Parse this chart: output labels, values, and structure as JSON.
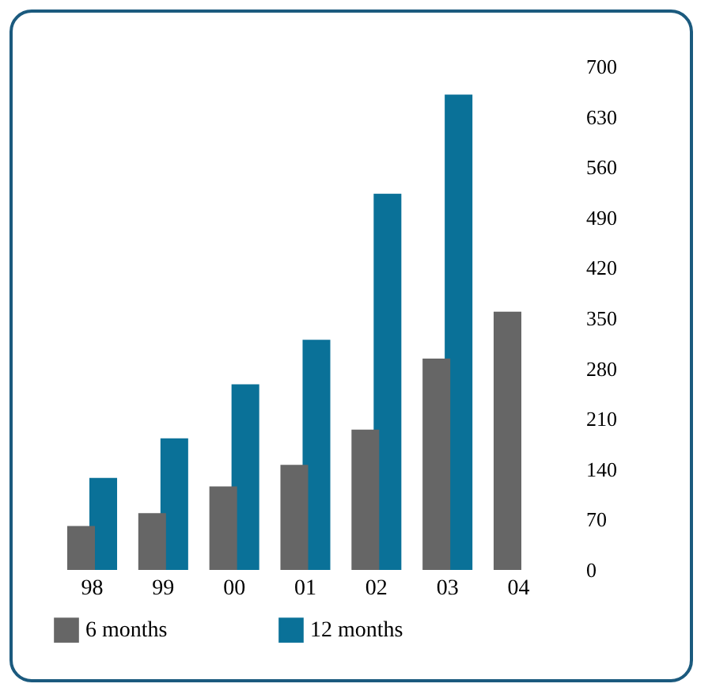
{
  "chart_data": {
    "type": "bar",
    "categories": [
      "98",
      "99",
      "00",
      "01",
      "02",
      "03",
      "04"
    ],
    "series": [
      {
        "name": "6 months",
        "color": "#666666",
        "values": [
          61,
          79,
          116,
          146,
          195,
          294,
          359
        ]
      },
      {
        "name": "12 months",
        "color": "#0a7198",
        "values": [
          128,
          183,
          258,
          320,
          523,
          661,
          null
        ]
      }
    ],
    "ylim": [
      0,
      700
    ],
    "yticks": [
      0,
      70,
      140,
      210,
      280,
      350,
      420,
      490,
      560,
      630,
      700
    ],
    "grid": false,
    "legend": "bottom left"
  }
}
